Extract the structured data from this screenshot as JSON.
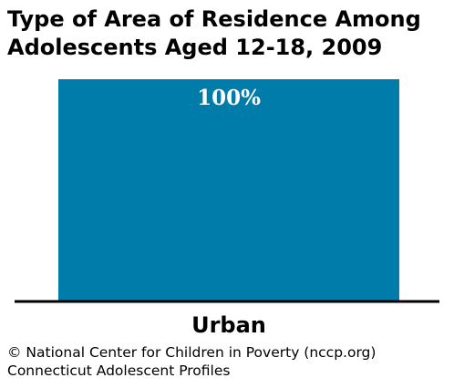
{
  "title": {
    "line1": "Type of Area of Residence Among",
    "line2": "Adolescents Aged 12-18, 2009"
  },
  "chart_data": {
    "type": "bar",
    "categories": [
      "Urban"
    ],
    "values": [
      100
    ],
    "data_labels": [
      "100%"
    ],
    "ylim": [
      0,
      100
    ],
    "grid": false,
    "bar_color": "#007CAB",
    "label_color": "#ffffff"
  },
  "footer": {
    "line1": "© National Center for Children in Poverty (nccp.org)",
    "line2": "Connecticut Adolescent Profiles"
  }
}
